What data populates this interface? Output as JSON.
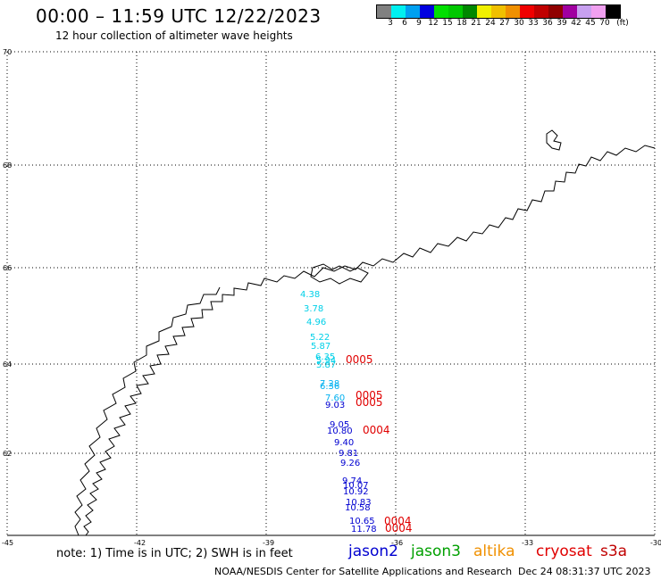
{
  "header": {
    "title": "00:00 – 11:59 UTC 12/22/2023",
    "subtitle": "12 hour collection of altimeter wave heights"
  },
  "legend": {
    "colors": [
      "#808080",
      "#00f0f0",
      "#00a0f0",
      "#0000e0",
      "#00e000",
      "#00c800",
      "#008800",
      "#f0f000",
      "#f0c000",
      "#f09000",
      "#f00000",
      "#c00000",
      "#900000",
      "#a000a0",
      "#c8a0f0",
      "#f0a0f0",
      "#000000"
    ],
    "labels": [
      "3",
      "6",
      "9",
      "12",
      "15",
      "18",
      "21",
      "24",
      "27",
      "30",
      "33",
      "36",
      "39",
      "42",
      "45",
      "70",
      "(ft)"
    ]
  },
  "map": {
    "lat_labels": [
      "70",
      "68",
      "66",
      "64",
      "62",
      "60"
    ],
    "lon_labels": [
      "-45",
      "-42",
      "-39",
      "-36",
      "-33",
      "-30"
    ],
    "observations": [
      {
        "text": "4.38",
        "color": "#00d0e8"
      },
      {
        "text": "3.78",
        "color": "#00d0e8"
      },
      {
        "text": "4.96",
        "color": "#00d0e8"
      },
      {
        "text": "5.22",
        "color": "#00d0e8"
      },
      {
        "text": "5.87",
        "color": "#00d0e8"
      },
      {
        "text": "6.35",
        "color": "#00d0e8"
      },
      {
        "text": "5.94",
        "color": "#00d0e8"
      },
      {
        "text": "5.87",
        "color": "#00d0e8"
      },
      {
        "text": "7.28",
        "color": "#00b0f0"
      },
      {
        "text": "6.36",
        "color": "#00b0f0"
      },
      {
        "text": "7.60",
        "color": "#00b0f0"
      },
      {
        "text": "9.03",
        "color": "#0000d0"
      },
      {
        "text": "9.05",
        "color": "#0000d0"
      },
      {
        "text": "10.80",
        "color": "#0000d0"
      },
      {
        "text": "9.40",
        "color": "#0000d0"
      },
      {
        "text": "9.81",
        "color": "#0000d0"
      },
      {
        "text": "9.26",
        "color": "#0000d0"
      },
      {
        "text": "9.74",
        "color": "#0000d0"
      },
      {
        "text": "10.07",
        "color": "#0000d0"
      },
      {
        "text": "10.92",
        "color": "#0000d0"
      },
      {
        "text": "10.83",
        "color": "#0000d0"
      },
      {
        "text": "10.58",
        "color": "#0000d0"
      },
      {
        "text": "10.65",
        "color": "#0000d0"
      },
      {
        "text": "11.78",
        "color": "#0000d0"
      },
      {
        "text": "0005",
        "color": "#e00000"
      },
      {
        "text": "0005",
        "color": "#e00000"
      },
      {
        "text": "0005",
        "color": "#e00000"
      },
      {
        "text": "0004",
        "color": "#e00000"
      },
      {
        "text": "0004",
        "color": "#e00000"
      },
      {
        "text": "0004",
        "color": "#e00000"
      }
    ]
  },
  "footer": {
    "note": "note: 1) Time is in UTC; 2) SWH is in feet",
    "satellites": [
      {
        "name": "jason2",
        "color": "#0000d0"
      },
      {
        "name": "jason3",
        "color": "#00a000"
      },
      {
        "name": "altika",
        "color": "#f09000"
      },
      {
        "name": "cryosat",
        "color": "#e00000"
      },
      {
        "name": "s3a",
        "color": "#c00000"
      }
    ],
    "credit": "NOAA/NESDIS Center for Satellite Applications and Research",
    "timestamp": "Dec 24 08:31:37 UTC 2023"
  }
}
